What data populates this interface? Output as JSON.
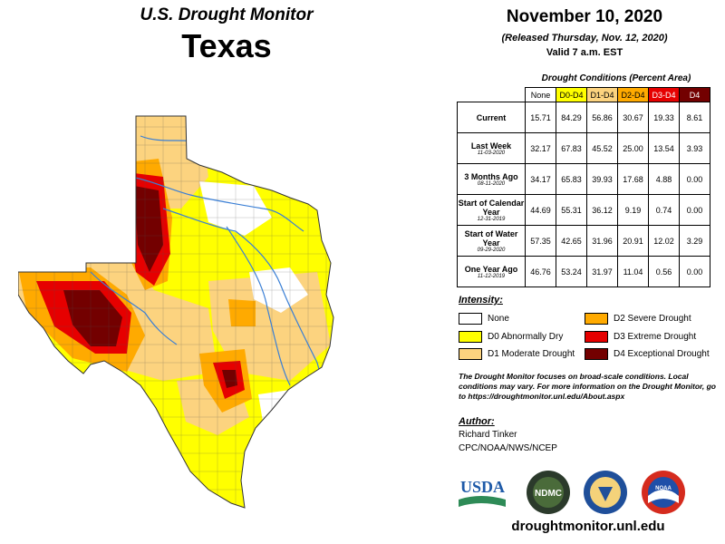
{
  "header": {
    "monitor_title": "U.S. Drought Monitor",
    "state": "Texas",
    "date": "November 10, 2020",
    "released": "(Released Thursday, Nov. 12, 2020)",
    "valid": "Valid 7 a.m. EST"
  },
  "table": {
    "title": "Drought Conditions (Percent Area)",
    "columns": [
      {
        "label": "None",
        "color": "#ffffff",
        "text_color": "#000000"
      },
      {
        "label": "D0-D4",
        "color": "#ffff00",
        "text_color": "#000000"
      },
      {
        "label": "D1-D4",
        "color": "#fcd37f",
        "text_color": "#000000"
      },
      {
        "label": "D2-D4",
        "color": "#ffaa00",
        "text_color": "#000000"
      },
      {
        "label": "D3-D4",
        "color": "#e60000",
        "text_color": "#ffffff"
      },
      {
        "label": "D4",
        "color": "#730000",
        "text_color": "#ffffff"
      }
    ],
    "rows": [
      {
        "label": "Current",
        "date": "",
        "values": [
          "15.71",
          "84.29",
          "56.86",
          "30.67",
          "19.33",
          "8.61"
        ]
      },
      {
        "label": "Last Week",
        "date": "11-03-2020",
        "values": [
          "32.17",
          "67.83",
          "45.52",
          "25.00",
          "13.54",
          "3.93"
        ]
      },
      {
        "label": "3 Months Ago",
        "date": "08-11-2020",
        "values": [
          "34.17",
          "65.83",
          "39.93",
          "17.68",
          "4.88",
          "0.00"
        ]
      },
      {
        "label": "Start of Calendar Year",
        "date": "12-31-2019",
        "values": [
          "44.69",
          "55.31",
          "36.12",
          "9.19",
          "0.74",
          "0.00"
        ]
      },
      {
        "label": "Start of Water Year",
        "date": "09-29-2020",
        "values": [
          "57.35",
          "42.65",
          "31.96",
          "20.91",
          "12.02",
          "3.29"
        ]
      },
      {
        "label": "One Year Ago",
        "date": "11-12-2019",
        "values": [
          "46.76",
          "53.24",
          "31.97",
          "11.04",
          "0.56",
          "0.00"
        ]
      }
    ]
  },
  "intensity": {
    "title": "Intensity:",
    "items": [
      {
        "label": "None",
        "color": "#ffffff"
      },
      {
        "label": "D0 Abnormally Dry",
        "color": "#ffff00"
      },
      {
        "label": "D1 Moderate Drought",
        "color": "#fcd37f"
      },
      {
        "label": "D2 Severe Drought",
        "color": "#ffaa00"
      },
      {
        "label": "D3 Extreme Drought",
        "color": "#e60000"
      },
      {
        "label": "D4 Exceptional Drought",
        "color": "#730000"
      }
    ]
  },
  "note": "The Drought Monitor focuses on broad-scale conditions. Local conditions may vary. For more information on the Drought Monitor, go to https://droughtmonitor.unl.edu/About.aspx",
  "author": {
    "title": "Author:",
    "name": "Richard Tinker",
    "org": "CPC/NOAA/NWS/NCEP"
  },
  "logos": {
    "usda": "USDA",
    "ndmc": "NDMC",
    "noaa": "NOAA"
  },
  "website": "droughtmonitor.unl.edu"
}
